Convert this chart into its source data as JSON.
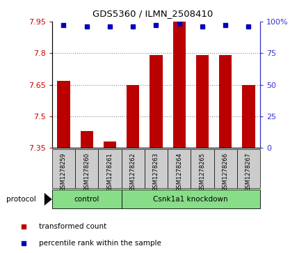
{
  "title": "GDS5360 / ILMN_2508410",
  "samples": [
    "GSM1278259",
    "GSM1278260",
    "GSM1278261",
    "GSM1278262",
    "GSM1278263",
    "GSM1278264",
    "GSM1278265",
    "GSM1278266",
    "GSM1278267"
  ],
  "transformed_counts": [
    7.67,
    7.43,
    7.38,
    7.65,
    7.79,
    7.95,
    7.79,
    7.79,
    7.65
  ],
  "percentile_ranks": [
    97,
    96,
    96,
    96,
    97,
    98,
    96,
    97,
    96
  ],
  "bar_color": "#BB0000",
  "dot_color": "#0000BB",
  "ylim_left": [
    7.35,
    7.95
  ],
  "ylim_right": [
    0,
    100
  ],
  "left_yticks": [
    7.35,
    7.5,
    7.65,
    7.8,
    7.95
  ],
  "right_yticks": [
    0,
    25,
    50,
    75,
    100
  ],
  "right_yticklabels": [
    "0",
    "25",
    "50",
    "75",
    "100%"
  ],
  "left_tick_color": "#CC0000",
  "right_tick_color": "#3333CC",
  "grid_color": "#888888",
  "sample_bg_color": "#CCCCCC",
  "green_color": "#88DD88",
  "legend_bar_label": "transformed count",
  "legend_dot_label": "percentile rank within the sample",
  "figsize": [
    4.4,
    3.63
  ],
  "dpi": 100,
  "n_control": 3,
  "n_knockdown": 6,
  "control_label": "control",
  "knockdown_label": "Csnk1a1 knockdown",
  "protocol_label": "protocol"
}
